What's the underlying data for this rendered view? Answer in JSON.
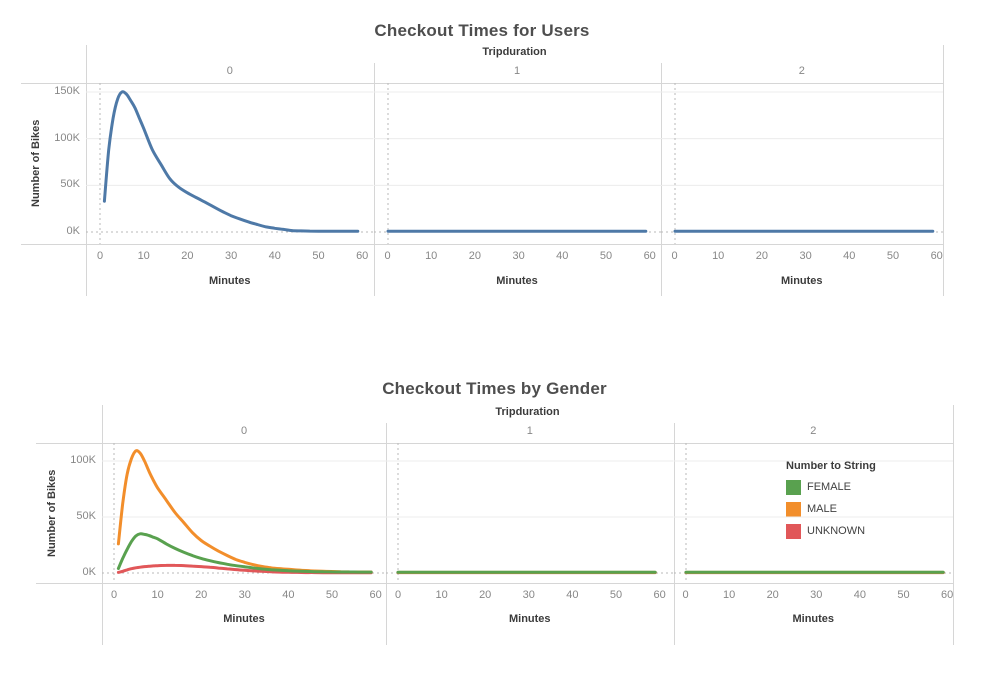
{
  "chart_data": [
    {
      "type": "line",
      "title": "Checkout Times for Users",
      "facet_title": "Tripduration",
      "xlabel": "Minutes",
      "ylabel": "Number of Bikes",
      "x_ticks": [
        0,
        10,
        20,
        30,
        40,
        50,
        60
      ],
      "y_ticks": [
        {
          "label": "0K",
          "value_k": 0
        },
        {
          "label": "50K",
          "value_k": 50
        },
        {
          "label": "100K",
          "value_k": 100
        },
        {
          "label": "150K",
          "value_k": 150
        }
      ],
      "xlim": [
        0,
        60
      ],
      "ylim_thousands": [
        0,
        150
      ],
      "grid": true,
      "panels": [
        {
          "facet_value": "0",
          "x": [
            1,
            2,
            3,
            4,
            5,
            6,
            7,
            8,
            9,
            10,
            12,
            14,
            16,
            18,
            20,
            22,
            24,
            26,
            28,
            30,
            32,
            34,
            36,
            38,
            40,
            42,
            44,
            46,
            48,
            50,
            52,
            54,
            56,
            58,
            59
          ],
          "series": [
            {
              "name": "users",
              "color": "#4E79A7",
              "values_thousands": [
                33,
                88,
                122,
                142,
                150,
                148,
                141,
                133,
                122,
                111,
                88,
                72,
                57,
                48,
                42,
                37,
                32,
                27,
                22,
                17.5,
                14,
                10.8,
                8,
                5.5,
                4,
                2.8,
                1.5,
                1.2,
                1,
                0.9,
                0.9,
                0.9,
                0.9,
                0.9,
                0.9
              ]
            }
          ]
        },
        {
          "facet_value": "1",
          "x": [
            0,
            5,
            10,
            15,
            20,
            25,
            30,
            35,
            40,
            45,
            50,
            55,
            59
          ],
          "series": [
            {
              "name": "users",
              "color": "#4E79A7",
              "values_thousands": [
                0.8,
                0.8,
                0.8,
                0.8,
                0.8,
                0.8,
                0.8,
                0.8,
                0.8,
                0.8,
                0.8,
                0.8,
                0.8
              ]
            }
          ]
        },
        {
          "facet_value": "2",
          "x": [
            0,
            5,
            10,
            15,
            20,
            25,
            30,
            35,
            40,
            45,
            50,
            55,
            59
          ],
          "series": [
            {
              "name": "users",
              "color": "#4E79A7",
              "values_thousands": [
                0.8,
                0.8,
                0.8,
                0.8,
                0.8,
                0.8,
                0.8,
                0.8,
                0.8,
                0.8,
                0.8,
                0.8,
                0.8
              ]
            }
          ]
        }
      ]
    },
    {
      "type": "line",
      "title": "Checkout Times by Gender",
      "facet_title": "Tripduration",
      "xlabel": "Minutes",
      "ylabel": "Number of Bikes",
      "x_ticks": [
        0,
        10,
        20,
        30,
        40,
        50,
        60
      ],
      "y_ticks": [
        {
          "label": "0K",
          "value_k": 0
        },
        {
          "label": "50K",
          "value_k": 50
        },
        {
          "label": "100K",
          "value_k": 100
        }
      ],
      "xlim": [
        0,
        60
      ],
      "ylim_thousands": [
        0,
        100
      ],
      "grid": true,
      "legend": {
        "title": "Number to String",
        "items": [
          {
            "label": "FEMALE",
            "color": "#59A14F"
          },
          {
            "label": "MALE",
            "color": "#F28E2B"
          },
          {
            "label": "UNKNOWN",
            "color": "#E15759"
          }
        ]
      },
      "panels": [
        {
          "facet_value": "0",
          "x": [
            1,
            2,
            3,
            4,
            5,
            6,
            7,
            8,
            9,
            10,
            12,
            14,
            16,
            18,
            20,
            22,
            24,
            26,
            28,
            30,
            32,
            34,
            36,
            38,
            40,
            42,
            44,
            46,
            48,
            50,
            52,
            54,
            56,
            58,
            59
          ],
          "series": [
            {
              "name": "UNKNOWN",
              "color": "#E15759",
              "values_thousands": [
                0.5,
                1.5,
                2.8,
                3.8,
                4.6,
                5.2,
                5.7,
                6,
                6.3,
                6.5,
                6.8,
                6.8,
                6.6,
                6.2,
                5.7,
                5.1,
                4.4,
                3.7,
                3,
                2.4,
                1.9,
                1.5,
                1.1,
                0.8,
                0.6,
                0.5,
                0.4,
                0.4,
                0.3,
                0.3,
                0.3,
                0.3,
                0.3,
                0.3,
                0.3
              ]
            },
            {
              "name": "MALE",
              "color": "#F28E2B",
              "values_thousands": [
                26,
                62,
                88,
                102,
                109,
                107,
                100,
                91,
                83,
                76,
                65,
                54,
                45,
                36,
                29,
                24,
                19.5,
                15.5,
                12,
                9.5,
                7.4,
                5.8,
                4.6,
                3.9,
                3.3,
                2.7,
                2.2,
                1.8,
                1.5,
                1.3,
                1.1,
                1,
                0.9,
                0.9,
                0.9
              ]
            },
            {
              "name": "FEMALE",
              "color": "#59A14F",
              "values_thousands": [
                4,
                13,
                21,
                28,
                33,
                35,
                34.5,
                33.5,
                32,
                30.5,
                26,
                22,
                18.5,
                15.5,
                13,
                11,
                9.3,
                7.8,
                6.5,
                5.5,
                4.5,
                3.6,
                2.9,
                2.4,
                2,
                1.7,
                1.4,
                1.2,
                1.1,
                1,
                0.9,
                0.9,
                0.8,
                0.8,
                0.8
              ]
            }
          ]
        },
        {
          "facet_value": "1",
          "x": [
            0,
            5,
            10,
            15,
            20,
            25,
            30,
            35,
            40,
            45,
            50,
            55,
            59
          ],
          "series": [
            {
              "name": "UNKNOWN",
              "color": "#E15759",
              "values_thousands": [
                0.4,
                0.4,
                0.4,
                0.4,
                0.4,
                0.4,
                0.4,
                0.4,
                0.4,
                0.4,
                0.4,
                0.4,
                0.4
              ]
            },
            {
              "name": "MALE",
              "color": "#F28E2B",
              "values_thousands": [
                0.5,
                0.5,
                0.5,
                0.5,
                0.5,
                0.5,
                0.5,
                0.5,
                0.5,
                0.5,
                0.5,
                0.5,
                0.5
              ]
            },
            {
              "name": "FEMALE",
              "color": "#59A14F",
              "values_thousands": [
                0.6,
                0.6,
                0.6,
                0.6,
                0.6,
                0.6,
                0.6,
                0.6,
                0.6,
                0.6,
                0.6,
                0.6,
                0.6
              ]
            }
          ]
        },
        {
          "facet_value": "2",
          "x": [
            0,
            5,
            10,
            15,
            20,
            25,
            30,
            35,
            40,
            45,
            50,
            55,
            59
          ],
          "series": [
            {
              "name": "UNKNOWN",
              "color": "#E15759",
              "values_thousands": [
                0.4,
                0.4,
                0.4,
                0.4,
                0.4,
                0.4,
                0.4,
                0.4,
                0.4,
                0.4,
                0.4,
                0.4,
                0.4
              ]
            },
            {
              "name": "MALE",
              "color": "#F28E2B",
              "values_thousands": [
                0.5,
                0.5,
                0.5,
                0.5,
                0.5,
                0.5,
                0.5,
                0.5,
                0.5,
                0.5,
                0.5,
                0.5,
                0.5
              ]
            },
            {
              "name": "FEMALE",
              "color": "#59A14F",
              "values_thousands": [
                0.6,
                0.6,
                0.6,
                0.6,
                0.6,
                0.6,
                0.6,
                0.6,
                0.6,
                0.6,
                0.6,
                0.6,
                0.6
              ]
            }
          ]
        }
      ]
    }
  ]
}
